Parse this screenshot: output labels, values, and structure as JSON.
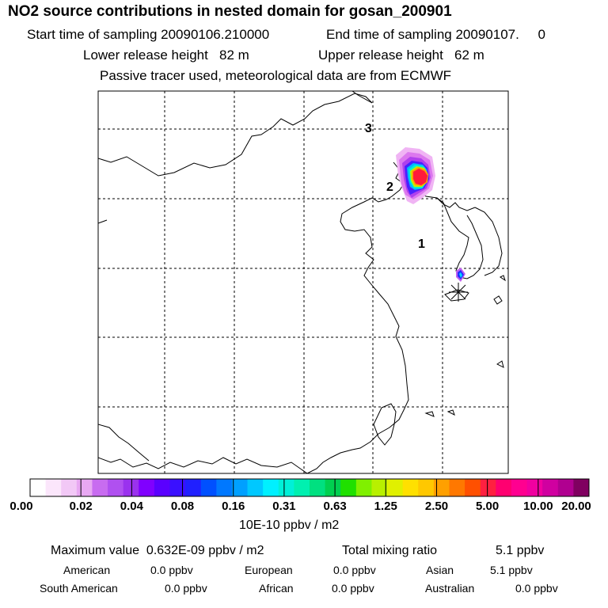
{
  "header": {
    "title": "NO2 source contributions in nested domain for gosan_200901",
    "start_time": "Start time of sampling 20090106.210000",
    "end_time": "End time of sampling 20090107.     0",
    "lower_height": "Lower release height   82 m",
    "upper_height": "Upper release height   62 m",
    "tracer_note": "Passive tracer used, meteorological data are from ECMWF"
  },
  "map": {
    "markers": [
      {
        "label": "3"
      },
      {
        "label": "2"
      },
      {
        "label": "1"
      }
    ],
    "receptor": "gosan-receptor-star"
  },
  "colorbar": {
    "ticks": [
      "0.00",
      "0.02",
      "0.04",
      "0.08",
      "0.16",
      "0.31",
      "0.63",
      "1.25",
      "2.50",
      "5.00",
      "10.00",
      "20.00"
    ],
    "unit": "10E-10 ppbv / m2",
    "colors": [
      "#ffffff",
      "#fbe6fb",
      "#f2c8f6",
      "#e8a8f2",
      "#c86cf0",
      "#b050f0",
      "#9a32ee",
      "#8000ff",
      "#5a00ff",
      "#3a10ff",
      "#2020ff",
      "#0050ff",
      "#0078ff",
      "#00a0ff",
      "#00c8ff",
      "#00f0ff",
      "#00f0d8",
      "#00f0b0",
      "#00e080",
      "#00d050",
      "#20e000",
      "#80f000",
      "#b8f000",
      "#e0f000",
      "#ffe000",
      "#ffc800",
      "#ffa000",
      "#ff7800",
      "#ff5000",
      "#ff2040",
      "#ff0070",
      "#ff0090",
      "#f000a0",
      "#d000a0",
      "#b00090",
      "#800060"
    ]
  },
  "summary": {
    "max_value": "Maximum value  0.632E-09 ppbv / m2",
    "total_label": "Total mixing ratio",
    "total_value": "5.1 ppbv",
    "regions": [
      {
        "name": "American",
        "value": "0.0 ppbv"
      },
      {
        "name": "European",
        "value": "0.0 ppbv"
      },
      {
        "name": "Asian",
        "value": "5.1 ppbv"
      },
      {
        "name": "South American",
        "value": "0.0 ppbv"
      },
      {
        "name": "African",
        "value": "0.0 ppbv"
      },
      {
        "name": "Australian",
        "value": "0.0 ppbv"
      }
    ]
  }
}
